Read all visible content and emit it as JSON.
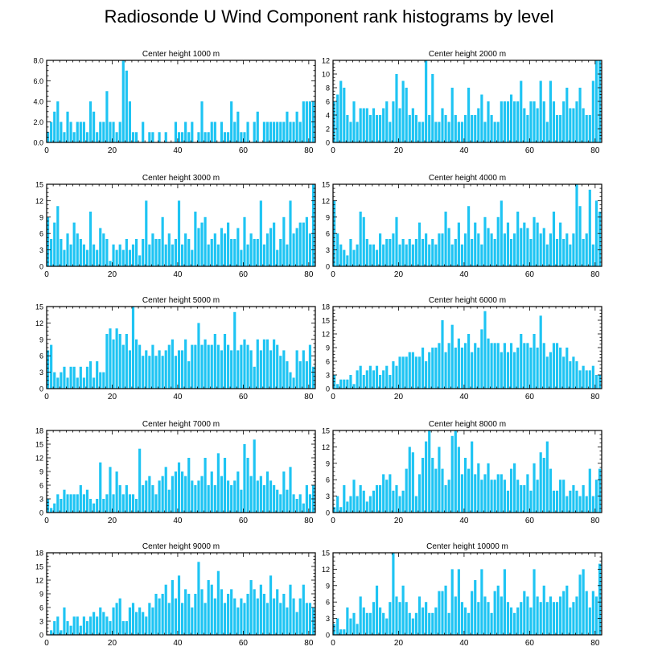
{
  "figure_title": "Radiosonde U Wind Component rank histograms by level",
  "colors": {
    "bar": "#1ec4f3",
    "axis": "#000000",
    "background": "#ffffff"
  },
  "chart_data": [
    {
      "type": "bar",
      "title": "Center height 1000 m",
      "xlim": [
        0,
        82
      ],
      "ylim": [
        0,
        8
      ],
      "xticks": [
        0,
        20,
        40,
        60,
        80
      ],
      "yticks": [
        0,
        2,
        4,
        6,
        8
      ],
      "ytick_labels": [
        "0.0",
        "2.0",
        "4.0",
        "6.0",
        "8.0"
      ],
      "values": [
        1,
        2,
        3,
        4,
        2,
        1,
        3,
        2,
        1,
        2,
        2,
        2,
        1,
        4,
        3,
        1,
        2,
        2,
        5,
        2,
        2,
        1,
        2,
        8,
        7,
        4,
        1,
        1,
        0,
        2,
        0,
        1,
        1,
        0,
        1,
        0,
        1,
        0,
        0,
        2,
        1,
        1,
        2,
        1,
        2,
        0,
        1,
        4,
        1,
        1,
        2,
        2,
        0,
        2,
        1,
        1,
        4,
        2,
        3,
        1,
        1,
        2,
        0,
        2,
        3,
        0,
        2,
        2,
        2,
        2,
        2,
        2,
        2,
        3,
        2,
        2,
        3,
        2,
        4,
        4,
        4,
        4
      ]
    },
    {
      "type": "bar",
      "title": "Center height 2000 m",
      "xlim": [
        0,
        82
      ],
      "ylim": [
        0,
        12
      ],
      "xticks": [
        0,
        20,
        40,
        60,
        80
      ],
      "yticks": [
        0,
        2,
        4,
        6,
        8,
        10,
        12
      ],
      "ytick_labels": [
        "0",
        "2",
        "4",
        "6",
        "8",
        "10",
        "12"
      ],
      "values": [
        6,
        7,
        9,
        8,
        4,
        3,
        6,
        3,
        5,
        5,
        5,
        4,
        5,
        4,
        4,
        5,
        6,
        3,
        6,
        10,
        5,
        9,
        8,
        4,
        5,
        4,
        3,
        3,
        12,
        4,
        10,
        3,
        3,
        5,
        4,
        3,
        8,
        4,
        3,
        3,
        4,
        8,
        4,
        4,
        5,
        7,
        3,
        6,
        4,
        3,
        3,
        6,
        6,
        6,
        7,
        6,
        6,
        9,
        5,
        4,
        6,
        6,
        5,
        9,
        6,
        3,
        9,
        6,
        4,
        4,
        6,
        8,
        5,
        5,
        6,
        8,
        5,
        4,
        4,
        9,
        12,
        12
      ]
    },
    {
      "type": "bar",
      "title": "Center height 3000 m",
      "xlim": [
        0,
        82
      ],
      "ylim": [
        0,
        15
      ],
      "xticks": [
        0,
        20,
        40,
        60,
        80
      ],
      "yticks": [
        0,
        3,
        6,
        9,
        12,
        15
      ],
      "ytick_labels": [
        "0",
        "3",
        "6",
        "9",
        "12",
        "15"
      ],
      "values": [
        9,
        5,
        8,
        11,
        5,
        3,
        6,
        4,
        8,
        6,
        5,
        4,
        3,
        10,
        4,
        3,
        7,
        6,
        5,
        1,
        4,
        3,
        4,
        3,
        5,
        3,
        4,
        5,
        2,
        5,
        12,
        4,
        6,
        5,
        5,
        9,
        4,
        6,
        4,
        5,
        12,
        4,
        6,
        5,
        3,
        10,
        7,
        8,
        9,
        4,
        5,
        6,
        4,
        7,
        6,
        8,
        5,
        5,
        7,
        3,
        9,
        4,
        6,
        5,
        5,
        12,
        4,
        6,
        7,
        8,
        3,
        5,
        9,
        4,
        12,
        6,
        7,
        8,
        8,
        9,
        6,
        15
      ]
    },
    {
      "type": "bar",
      "title": "Center height 4000 m",
      "xlim": [
        0,
        82
      ],
      "ylim": [
        0,
        15
      ],
      "xticks": [
        0,
        20,
        40,
        60,
        80
      ],
      "yticks": [
        0,
        3,
        6,
        9,
        12,
        15
      ],
      "ytick_labels": [
        "0",
        "3",
        "6",
        "9",
        "12",
        "15"
      ],
      "values": [
        12,
        6,
        4,
        3,
        2,
        5,
        3,
        4,
        10,
        9,
        5,
        4,
        4,
        3,
        6,
        4,
        5,
        5,
        6,
        9,
        4,
        5,
        4,
        5,
        4,
        5,
        8,
        5,
        6,
        4,
        5,
        4,
        6,
        6,
        10,
        7,
        4,
        5,
        8,
        4,
        6,
        11,
        5,
        8,
        6,
        4,
        9,
        7,
        6,
        5,
        9,
        12,
        6,
        8,
        5,
        6,
        10,
        7,
        8,
        7,
        5,
        9,
        8,
        6,
        7,
        4,
        6,
        10,
        5,
        8,
        5,
        6,
        4,
        6,
        15,
        11,
        5,
        6,
        14,
        4,
        12,
        10
      ]
    },
    {
      "type": "bar",
      "title": "Center height 5000 m",
      "xlim": [
        0,
        82
      ],
      "ylim": [
        0,
        15
      ],
      "xticks": [
        0,
        20,
        40,
        60,
        80
      ],
      "yticks": [
        0,
        3,
        6,
        9,
        12,
        15
      ],
      "ytick_labels": [
        "0",
        "3",
        "6",
        "9",
        "12",
        "15"
      ],
      "values": [
        7,
        8,
        3,
        2,
        3,
        4,
        2,
        4,
        4,
        2,
        4,
        2,
        4,
        5,
        2,
        5,
        3,
        3,
        10,
        11,
        9,
        11,
        10,
        8,
        10,
        7,
        15,
        9,
        8,
        6,
        7,
        6,
        8,
        6,
        7,
        6,
        7,
        8,
        9,
        6,
        7,
        7,
        9,
        5,
        8,
        8,
        12,
        8,
        9,
        8,
        8,
        10,
        8,
        7,
        10,
        8,
        7,
        14,
        7,
        8,
        9,
        8,
        7,
        4,
        9,
        7,
        9,
        9,
        7,
        9,
        8,
        6,
        7,
        5,
        3,
        2,
        7,
        5,
        7,
        5,
        8,
        4
      ]
    },
    {
      "type": "bar",
      "title": "Center height 6000 m",
      "xlim": [
        0,
        82
      ],
      "ylim": [
        0,
        18
      ],
      "xticks": [
        0,
        20,
        40,
        60,
        80
      ],
      "yticks": [
        0,
        3,
        6,
        9,
        12,
        15,
        18
      ],
      "ytick_labels": [
        "0",
        "3",
        "6",
        "9",
        "12",
        "15",
        "18"
      ],
      "values": [
        3,
        1,
        2,
        2,
        2,
        3,
        1,
        4,
        5,
        3,
        4,
        5,
        4,
        5,
        3,
        4,
        5,
        3,
        6,
        5,
        7,
        7,
        7,
        8,
        8,
        7,
        7,
        9,
        6,
        8,
        9,
        9,
        10,
        15,
        8,
        10,
        14,
        9,
        11,
        9,
        10,
        12,
        8,
        10,
        9,
        13,
        17,
        11,
        10,
        10,
        10,
        8,
        10,
        8,
        10,
        8,
        9,
        12,
        10,
        10,
        9,
        12,
        9,
        16,
        10,
        7,
        8,
        10,
        10,
        9,
        7,
        9,
        6,
        7,
        6,
        4,
        5,
        4,
        4,
        5,
        3,
        3
      ]
    },
    {
      "type": "bar",
      "title": "Center height 7000 m",
      "xlim": [
        0,
        82
      ],
      "ylim": [
        0,
        18
      ],
      "xticks": [
        0,
        20,
        40,
        60,
        80
      ],
      "yticks": [
        0,
        3,
        6,
        9,
        12,
        15,
        18
      ],
      "ytick_labels": [
        "0",
        "3",
        "6",
        "9",
        "12",
        "15",
        "18"
      ],
      "values": [
        3,
        1,
        2,
        4,
        3,
        5,
        4,
        4,
        4,
        4,
        6,
        4,
        5,
        3,
        2,
        3,
        11,
        3,
        4,
        10,
        4,
        9,
        6,
        4,
        6,
        4,
        4,
        3,
        14,
        6,
        7,
        8,
        6,
        4,
        7,
        8,
        10,
        5,
        8,
        9,
        11,
        9,
        8,
        12,
        7,
        6,
        7,
        8,
        12,
        6,
        9,
        6,
        13,
        8,
        12,
        7,
        6,
        7,
        9,
        5,
        15,
        12,
        8,
        16,
        7,
        8,
        6,
        9,
        7,
        6,
        5,
        4,
        9,
        5,
        10,
        4,
        3,
        4,
        2,
        6,
        4,
        6
      ]
    },
    {
      "type": "bar",
      "title": "Center height 8000 m",
      "xlim": [
        0,
        82
      ],
      "ylim": [
        0,
        15
      ],
      "xticks": [
        0,
        20,
        40,
        60,
        80
      ],
      "yticks": [
        0,
        3,
        6,
        9,
        12,
        15
      ],
      "ytick_labels": [
        "0",
        "3",
        "6",
        "9",
        "12",
        "15"
      ],
      "values": [
        1,
        3,
        1,
        5,
        2,
        3,
        6,
        3,
        5,
        4,
        2,
        3,
        4,
        5,
        5,
        7,
        6,
        7,
        4,
        5,
        3,
        4,
        8,
        12,
        11,
        3,
        7,
        10,
        13,
        15,
        10,
        8,
        12,
        8,
        5,
        6,
        14,
        15,
        12,
        7,
        10,
        8,
        13,
        7,
        9,
        6,
        7,
        9,
        6,
        6,
        7,
        7,
        6,
        4,
        8,
        9,
        6,
        5,
        5,
        7,
        4,
        9,
        6,
        11,
        10,
        13,
        8,
        4,
        4,
        6,
        6,
        3,
        4,
        5,
        4,
        3,
        5,
        3,
        8,
        3,
        6,
        8
      ]
    },
    {
      "type": "bar",
      "title": "Center height 9000 m",
      "xlim": [
        0,
        82
      ],
      "ylim": [
        0,
        18
      ],
      "xticks": [
        0,
        20,
        40,
        60,
        80
      ],
      "yticks": [
        0,
        3,
        6,
        9,
        12,
        15,
        18
      ],
      "ytick_labels": [
        "0",
        "3",
        "6",
        "9",
        "12",
        "15",
        "18"
      ],
      "values": [
        0,
        1,
        3,
        4,
        1,
        6,
        3,
        2,
        4,
        4,
        2,
        4,
        3,
        4,
        5,
        4,
        6,
        5,
        4,
        3,
        6,
        7,
        8,
        3,
        3,
        6,
        7,
        5,
        6,
        5,
        4,
        7,
        6,
        9,
        8,
        9,
        11,
        7,
        12,
        8,
        13,
        7,
        10,
        9,
        6,
        9,
        16,
        10,
        7,
        12,
        11,
        8,
        14,
        10,
        7,
        9,
        10,
        8,
        6,
        8,
        7,
        9,
        12,
        10,
        8,
        11,
        9,
        7,
        13,
        8,
        10,
        7,
        9,
        6,
        11,
        8,
        5,
        8,
        11,
        7,
        7,
        6
      ]
    },
    {
      "type": "bar",
      "title": "Center height 10000 m",
      "xlim": [
        0,
        82
      ],
      "ylim": [
        0,
        15
      ],
      "xticks": [
        0,
        20,
        40,
        60,
        80
      ],
      "yticks": [
        0,
        3,
        6,
        9,
        12,
        15
      ],
      "ytick_labels": [
        "0",
        "3",
        "6",
        "9",
        "12",
        "15"
      ],
      "values": [
        2,
        3,
        1,
        1,
        5,
        3,
        4,
        2,
        7,
        5,
        4,
        4,
        6,
        9,
        5,
        4,
        3,
        6,
        15,
        7,
        6,
        9,
        6,
        4,
        3,
        4,
        7,
        5,
        6,
        4,
        4,
        5,
        8,
        8,
        9,
        4,
        12,
        7,
        12,
        6,
        5,
        4,
        8,
        10,
        6,
        12,
        7,
        6,
        4,
        8,
        9,
        7,
        12,
        6,
        5,
        4,
        5,
        6,
        8,
        7,
        5,
        12,
        7,
        6,
        9,
        6,
        7,
        6,
        6,
        7,
        8,
        9,
        5,
        6,
        7,
        11,
        12,
        8,
        5,
        8,
        7,
        13
      ]
    }
  ]
}
